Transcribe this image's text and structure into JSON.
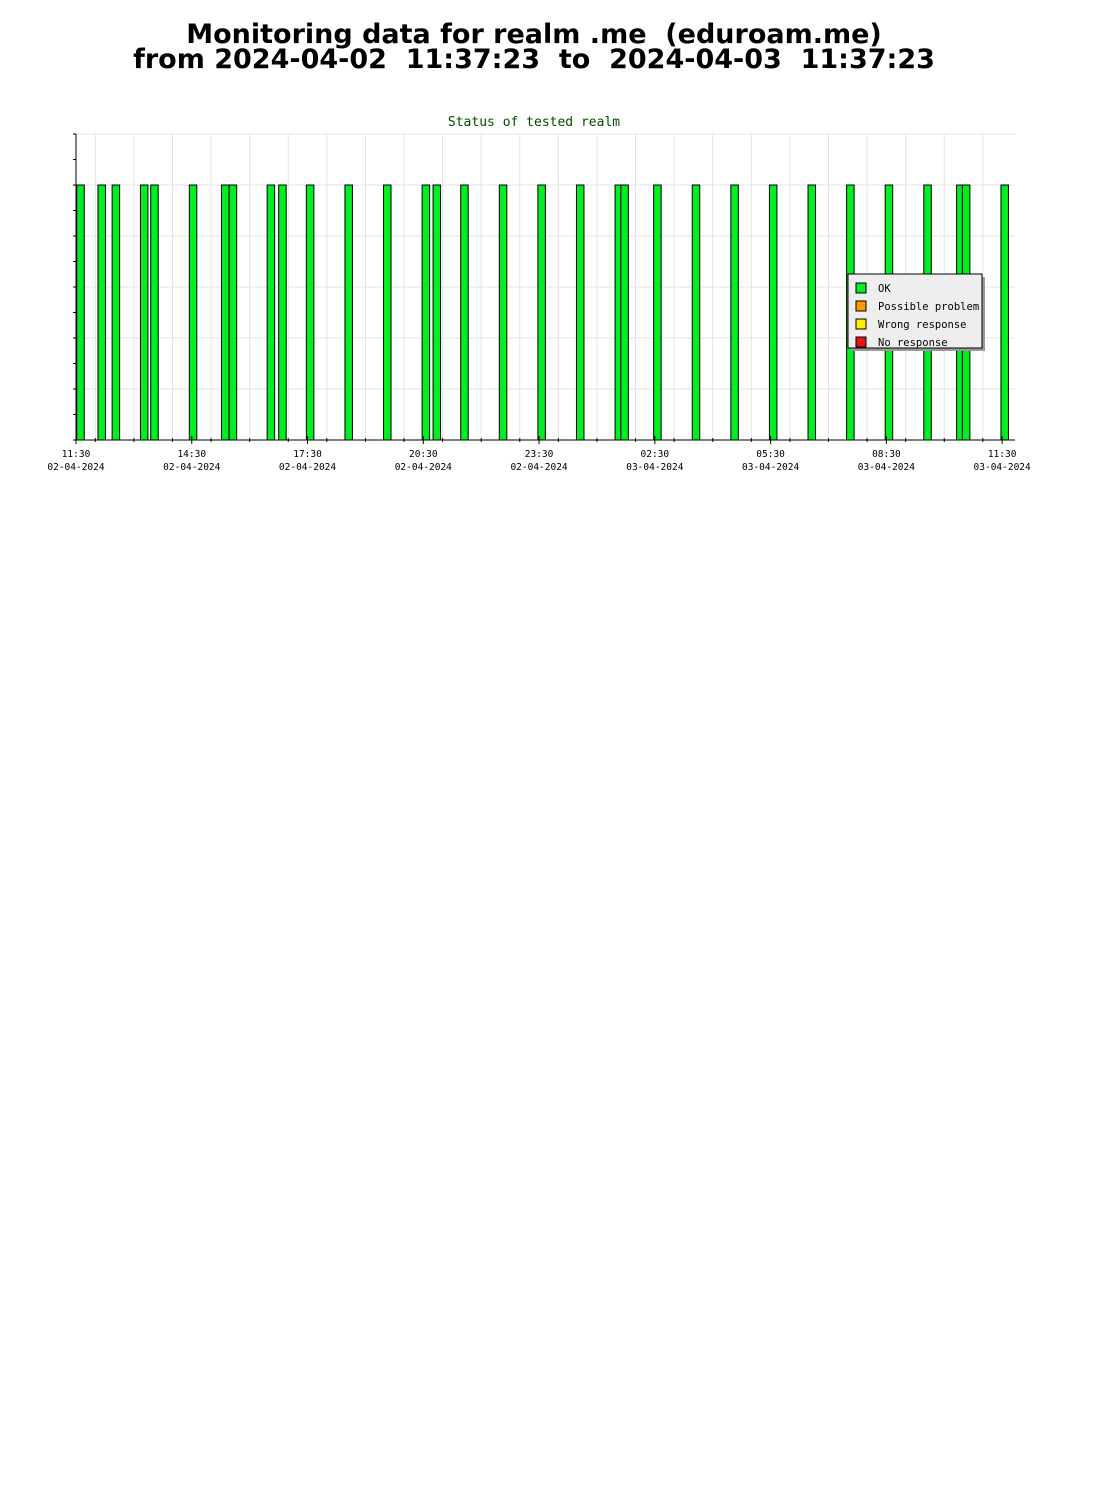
{
  "header": {
    "line1": "Monitoring data for realm .me  (eduroam.me)",
    "line2": "from 2024-04-02  11:37:23  to  2024-04-03  11:37:23"
  },
  "chart_data": {
    "type": "bar",
    "title": "Status of tested realm",
    "xlabel": "",
    "ylabel": "",
    "x_unit": "datetime",
    "xlim": [
      "2024-04-02 11:30",
      "2024-04-03 11:50"
    ],
    "ylim": [
      0,
      1.2
    ],
    "grid": true,
    "legend_position": "right",
    "x_ticks": [
      {
        "time": "2024-04-02 11:30",
        "label_time": "11:30",
        "label_date": "02-04-2024"
      },
      {
        "time": "2024-04-02 14:30",
        "label_time": "14:30",
        "label_date": "02-04-2024"
      },
      {
        "time": "2024-04-02 17:30",
        "label_time": "17:30",
        "label_date": "02-04-2024"
      },
      {
        "time": "2024-04-02 20:30",
        "label_time": "20:30",
        "label_date": "02-04-2024"
      },
      {
        "time": "2024-04-02 23:30",
        "label_time": "23:30",
        "label_date": "02-04-2024"
      },
      {
        "time": "2024-04-03 02:30",
        "label_time": "02:30",
        "label_date": "03-04-2024"
      },
      {
        "time": "2024-04-03 05:30",
        "label_time": "05:30",
        "label_date": "03-04-2024"
      },
      {
        "time": "2024-04-03 08:30",
        "label_time": "08:30",
        "label_date": "03-04-2024"
      },
      {
        "time": "2024-04-03 11:30",
        "label_time": "11:30",
        "label_date": "03-04-2024"
      }
    ],
    "series": [
      {
        "name": "OK",
        "color": "#00ee22",
        "points": [
          {
            "time": "2024-04-02 11:37",
            "value": 1
          },
          {
            "time": "2024-04-02 12:10",
            "value": 1
          },
          {
            "time": "2024-04-02 12:32",
            "value": 1
          },
          {
            "time": "2024-04-02 13:16",
            "value": 1
          },
          {
            "time": "2024-04-02 13:32",
            "value": 1
          },
          {
            "time": "2024-04-02 14:32",
            "value": 1
          },
          {
            "time": "2024-04-02 15:22",
            "value": 1
          },
          {
            "time": "2024-04-02 15:34",
            "value": 1
          },
          {
            "time": "2024-04-02 16:33",
            "value": 1
          },
          {
            "time": "2024-04-02 16:51",
            "value": 1
          },
          {
            "time": "2024-04-02 17:34",
            "value": 1
          },
          {
            "time": "2024-04-02 18:34",
            "value": 1
          },
          {
            "time": "2024-04-02 19:34",
            "value": 1
          },
          {
            "time": "2024-04-02 20:34",
            "value": 1
          },
          {
            "time": "2024-04-02 20:51",
            "value": 1
          },
          {
            "time": "2024-04-02 21:34",
            "value": 1
          },
          {
            "time": "2024-04-02 22:34",
            "value": 1
          },
          {
            "time": "2024-04-02 23:34",
            "value": 1
          },
          {
            "time": "2024-04-03 00:34",
            "value": 1
          },
          {
            "time": "2024-04-03 01:34",
            "value": 1
          },
          {
            "time": "2024-04-03 01:43",
            "value": 1
          },
          {
            "time": "2024-04-03 02:34",
            "value": 1
          },
          {
            "time": "2024-04-03 03:34",
            "value": 1
          },
          {
            "time": "2024-04-03 04:34",
            "value": 1
          },
          {
            "time": "2024-04-03 05:34",
            "value": 1
          },
          {
            "time": "2024-04-03 06:34",
            "value": 1
          },
          {
            "time": "2024-04-03 07:34",
            "value": 1
          },
          {
            "time": "2024-04-03 08:34",
            "value": 1
          },
          {
            "time": "2024-04-03 09:34",
            "value": 1
          },
          {
            "time": "2024-04-03 10:25",
            "value": 1
          },
          {
            "time": "2024-04-03 10:34",
            "value": 1
          },
          {
            "time": "2024-04-03 11:34",
            "value": 1
          }
        ]
      },
      {
        "name": "Possible problem",
        "color": "#ff9900",
        "points": []
      },
      {
        "name": "Wrong response",
        "color": "#ffee00",
        "points": []
      },
      {
        "name": "No response",
        "color": "#ee1111",
        "points": []
      }
    ]
  }
}
